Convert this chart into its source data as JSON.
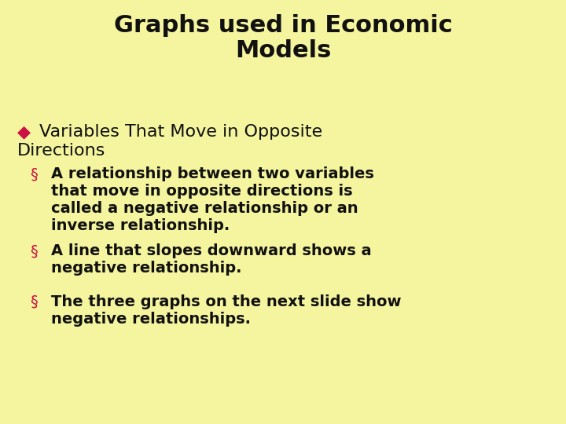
{
  "background_color": "#f5f5a0",
  "title_line1": "Graphs used in Economic",
  "title_line2": "Models",
  "title_color": "#111111",
  "title_fontsize": 22,
  "bullet_color": "#cc1144",
  "body_color": "#111111",
  "bullet_fontsize": 16,
  "body_fontsize": 14,
  "fig_width": 7.2,
  "fig_height": 5.4,
  "dpi": 100,
  "bullet_symbol": "◆",
  "section_symbol": "§",
  "bullet_text_line1": "Variables That Move in Opposite",
  "bullet_text_line2": "Directions",
  "items": [
    {
      "lines": [
        "A relationship between two variables",
        "that move in opposite directions is",
        "called a negative relationship or an",
        "inverse relationship."
      ]
    },
    {
      "lines": [
        "A line that slopes downward shows a",
        "negative relationship."
      ]
    },
    {
      "lines": [
        "The three graphs on the next slide show",
        "negative relationships."
      ]
    }
  ]
}
